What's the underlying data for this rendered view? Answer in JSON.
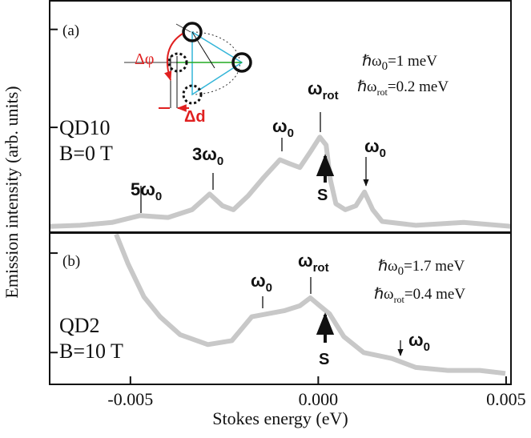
{
  "chart_data": [
    {
      "type": "line",
      "panel_label": "(a)",
      "sample": "QD10",
      "field": "B=0 T",
      "y_label": "Emission intensity (arb. units)",
      "xlim": [
        -0.00715,
        0.00513
      ],
      "ylim": [
        -0.07,
        2.3
      ],
      "yticks": [
        1,
        2
      ],
      "series": [
        {
          "color": "#c8c8c8",
          "x": [
            -0.00715,
            -0.00634,
            -0.00549,
            -0.00474,
            -0.004,
            -0.00336,
            -0.00289,
            -0.00255,
            -0.00226,
            -0.00187,
            -0.00145,
            -0.00102,
            -0.00077,
            -0.00049,
            -0.00021,
            4e-05,
            0.00021,
            0.00032,
            0.00047,
            0.00072,
            0.001,
            0.00123,
            0.00145,
            0.0017,
            0.0026,
            0.00387,
            0.00513
          ],
          "values": [
            -0.01,
            0,
            0.03,
            0.1,
            0.08,
            0.16,
            0.32,
            0.2,
            0.16,
            0.3,
            0.49,
            0.67,
            0.63,
            0.59,
            0.75,
            0.9,
            0.82,
            0.47,
            0.22,
            0.16,
            0.2,
            0.34,
            0.16,
            0.04,
            0,
            0.03,
            -0.01
          ]
        }
      ],
      "annotations": [
        {
          "text": "5ω",
          "sub": "0"
        },
        {
          "text": "3ω",
          "sub": "0"
        },
        {
          "text": "ω",
          "sub": "0"
        },
        {
          "text": "ω",
          "sub": "rot"
        },
        {
          "text": "S"
        },
        {
          "text": "ω",
          "sub": "0"
        },
        {
          "text": "ℏω",
          "sub": "0",
          "after": "=1 meV"
        },
        {
          "text": "ℏω",
          "sub": "rot",
          "after": "=0.2 meV"
        },
        {
          "text": "Δφ"
        },
        {
          "text": "Δd"
        }
      ]
    },
    {
      "type": "line",
      "panel_label": "(b)",
      "sample": "QD2",
      "field": "B=10 T",
      "x_label": "Stokes energy (eV)",
      "xlim": [
        -0.00715,
        0.00513
      ],
      "xticks": [
        -0.005,
        {
          "value": 0,
          "label": "0.000"
        },
        0.005
      ],
      "ylim": [
        0.68,
        2.21
      ],
      "yticks": [
        1,
        2
      ],
      "series": [
        {
          "color": "#c8c8c8",
          "x": [
            -0.00538,
            -0.00506,
            -0.00464,
            -0.00421,
            -0.00368,
            -0.00294,
            -0.0023,
            -0.00177,
            -0.00134,
            -0.00091,
            -0.00049,
            -0.00021,
            4e-05,
            0.0003,
            0.00068,
            0.00121,
            0.00196,
            0.0026,
            0.00345,
            0.0043,
            0.00498
          ],
          "values": [
            2.19,
            1.89,
            1.56,
            1.36,
            1.18,
            1.08,
            1.12,
            1.36,
            1.39,
            1.42,
            1.47,
            1.55,
            1.47,
            1.39,
            1.16,
            1.0,
            0.94,
            0.85,
            0.82,
            0.82,
            0.79
          ]
        }
      ],
      "annotations": [
        {
          "text": "ℏω",
          "sub": "0",
          "after": "=1.7 meV"
        },
        {
          "text": "ℏω",
          "sub": "rot",
          "after": "=0.4 meV"
        },
        {
          "text": "ω",
          "sub": "rot"
        },
        {
          "text": "ω",
          "sub": "0"
        },
        {
          "text": "S"
        },
        {
          "text": "ω",
          "sub": "0"
        }
      ]
    }
  ]
}
